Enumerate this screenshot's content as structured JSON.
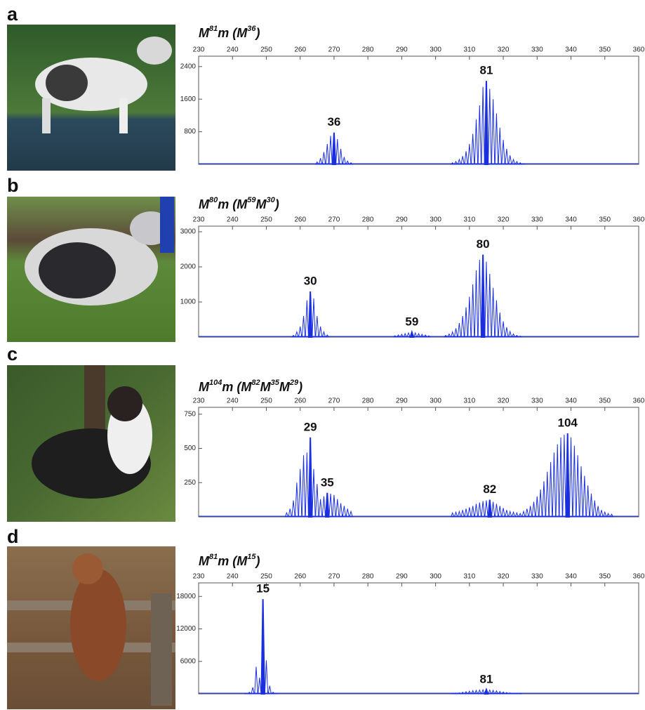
{
  "chart_data": [
    {
      "type": "spike",
      "panel_label": "a",
      "title": [
        {
          "text": "M"
        },
        {
          "text": "81",
          "sup": true
        },
        {
          "text": "m (M"
        },
        {
          "text": "36",
          "sup": true
        },
        {
          "text": ")"
        }
      ],
      "color": "#1a2fe0",
      "xlim": [
        230,
        360
      ],
      "xticks": [
        230,
        240,
        250,
        260,
        270,
        280,
        290,
        300,
        310,
        320,
        330,
        340,
        350,
        360
      ],
      "ylim": [
        0,
        2655
      ],
      "yticks": [
        800,
        1600,
        2400
      ],
      "x": [
        265,
        266,
        267,
        268,
        269,
        270,
        271,
        272,
        273,
        274,
        275,
        305,
        306,
        307,
        308,
        309,
        310,
        311,
        312,
        313,
        314,
        315,
        316,
        317,
        318,
        319,
        320,
        321,
        322,
        323,
        324,
        325,
        326
      ],
      "values": [
        60,
        150,
        300,
        500,
        700,
        780,
        620,
        380,
        180,
        80,
        40,
        40,
        70,
        120,
        200,
        320,
        500,
        750,
        1100,
        1450,
        1900,
        2050,
        1850,
        1600,
        1250,
        900,
        600,
        380,
        220,
        120,
        70,
        40,
        20
      ],
      "peak_names": [
        null,
        null,
        null,
        null,
        null,
        "36",
        null,
        null,
        null,
        null,
        null,
        null,
        null,
        null,
        null,
        null,
        null,
        null,
        null,
        null,
        null,
        "81",
        null,
        null,
        null,
        null,
        null,
        null,
        null,
        null,
        null,
        null,
        null
      ]
    },
    {
      "type": "spike",
      "panel_label": "b",
      "title": [
        {
          "text": "M"
        },
        {
          "text": "80",
          "sup": true
        },
        {
          "text": "m (M"
        },
        {
          "text": "59",
          "sup": true
        },
        {
          "text": "M"
        },
        {
          "text": "30",
          "sup": true
        },
        {
          "text": ")"
        }
      ],
      "color": "#1a2fe0",
      "xlim": [
        230,
        360
      ],
      "xticks": [
        230,
        240,
        250,
        260,
        270,
        280,
        290,
        300,
        310,
        320,
        330,
        340,
        350,
        360
      ],
      "ylim": [
        0,
        3160
      ],
      "yticks": [
        1000,
        2000,
        3000
      ],
      "x": [
        258,
        259,
        260,
        261,
        262,
        263,
        264,
        265,
        266,
        267,
        268,
        288,
        289,
        290,
        291,
        292,
        293,
        294,
        295,
        296,
        297,
        298,
        303,
        304,
        305,
        306,
        307,
        308,
        309,
        310,
        311,
        312,
        313,
        314,
        315,
        316,
        317,
        318,
        319,
        320,
        321,
        322,
        323,
        324,
        325
      ],
      "values": [
        50,
        150,
        300,
        600,
        1050,
        1300,
        1100,
        600,
        300,
        150,
        60,
        40,
        60,
        80,
        100,
        120,
        140,
        120,
        100,
        80,
        60,
        40,
        50,
        90,
        150,
        250,
        400,
        600,
        850,
        1150,
        1500,
        1900,
        2200,
        2350,
        2150,
        1800,
        1400,
        1050,
        700,
        450,
        280,
        160,
        90,
        50,
        30
      ],
      "peak_names": [
        null,
        null,
        null,
        null,
        null,
        "30",
        null,
        null,
        null,
        null,
        null,
        null,
        null,
        null,
        null,
        null,
        "59",
        null,
        null,
        null,
        null,
        null,
        null,
        null,
        null,
        null,
        null,
        null,
        null,
        null,
        null,
        null,
        null,
        "80",
        null,
        null,
        null,
        null,
        null,
        null,
        null,
        null,
        null,
        null,
        null
      ]
    },
    {
      "type": "spike",
      "panel_label": "c",
      "title": [
        {
          "text": "M"
        },
        {
          "text": "104",
          "sup": true
        },
        {
          "text": "m (M"
        },
        {
          "text": "82",
          "sup": true
        },
        {
          "text": "M"
        },
        {
          "text": "35",
          "sup": true
        },
        {
          "text": "M"
        },
        {
          "text": "29",
          "sup": true
        },
        {
          "text": ")"
        }
      ],
      "color": "#1a2fe0",
      "xlim": [
        230,
        360
      ],
      "xticks": [
        230,
        240,
        250,
        260,
        270,
        280,
        290,
        300,
        310,
        320,
        330,
        340,
        350,
        360
      ],
      "ylim": [
        0,
        800
      ],
      "yticks": [
        250,
        500,
        750
      ],
      "x": [
        256,
        257,
        258,
        259,
        260,
        261,
        262,
        263,
        264,
        265,
        266,
        267,
        268,
        269,
        270,
        271,
        272,
        273,
        274,
        275,
        305,
        306,
        307,
        308,
        309,
        310,
        311,
        312,
        313,
        314,
        315,
        316,
        317,
        318,
        319,
        320,
        321,
        322,
        323,
        324,
        325,
        326,
        327,
        328,
        329,
        330,
        331,
        332,
        333,
        334,
        335,
        336,
        337,
        338,
        339,
        340,
        341,
        342,
        343,
        344,
        345,
        346,
        347,
        348,
        349,
        350,
        351,
        352
      ],
      "values": [
        30,
        60,
        120,
        250,
        350,
        450,
        470,
        580,
        350,
        240,
        130,
        150,
        175,
        170,
        160,
        130,
        100,
        80,
        60,
        40,
        30,
        35,
        40,
        50,
        60,
        70,
        80,
        95,
        105,
        115,
        120,
        125,
        110,
        95,
        80,
        65,
        50,
        40,
        35,
        30,
        25,
        40,
        60,
        80,
        110,
        150,
        200,
        260,
        330,
        400,
        470,
        530,
        580,
        600,
        610,
        580,
        520,
        450,
        370,
        300,
        230,
        170,
        120,
        80,
        50,
        35,
        25,
        20
      ],
      "peak_names": [
        null,
        null,
        null,
        null,
        null,
        null,
        null,
        "29",
        null,
        null,
        null,
        null,
        "35",
        null,
        null,
        null,
        null,
        null,
        null,
        null,
        null,
        null,
        null,
        null,
        null,
        null,
        null,
        null,
        null,
        null,
        null,
        "82",
        null,
        null,
        null,
        null,
        null,
        null,
        null,
        null,
        null,
        null,
        null,
        null,
        null,
        null,
        null,
        null,
        null,
        null,
        null,
        null,
        null,
        null,
        "104",
        null,
        null,
        null,
        null,
        null,
        null,
        null,
        null,
        null,
        null,
        null,
        null,
        null
      ]
    },
    {
      "type": "spike",
      "panel_label": "d",
      "title": [
        {
          "text": "M"
        },
        {
          "text": "81",
          "sup": true
        },
        {
          "text": "m (M"
        },
        {
          "text": "15",
          "sup": true
        },
        {
          "text": ")"
        }
      ],
      "color": "#1a2fe0",
      "xlim": [
        230,
        360
      ],
      "xticks": [
        230,
        240,
        250,
        260,
        270,
        280,
        290,
        300,
        310,
        320,
        330,
        340,
        350,
        360
      ],
      "ylim": [
        0,
        20500
      ],
      "yticks": [
        6000,
        12000,
        18000
      ],
      "x": [
        244,
        245,
        246,
        247,
        248,
        249,
        250,
        251,
        252,
        253,
        305,
        306,
        307,
        308,
        309,
        310,
        311,
        312,
        313,
        314,
        315,
        316,
        317,
        318,
        319,
        320,
        321,
        322,
        323,
        324,
        325
      ],
      "values": [
        100,
        300,
        1200,
        5000,
        3000,
        17500,
        6200,
        1500,
        300,
        100,
        100,
        150,
        200,
        300,
        400,
        500,
        600,
        650,
        700,
        750,
        800,
        720,
        650,
        550,
        450,
        350,
        250,
        180,
        120,
        80,
        50
      ],
      "peak_names": [
        null,
        null,
        null,
        null,
        null,
        "15",
        null,
        null,
        null,
        null,
        null,
        null,
        null,
        null,
        null,
        null,
        null,
        null,
        null,
        null,
        "81",
        null,
        null,
        null,
        null,
        null,
        null,
        null,
        null,
        null,
        null
      ]
    }
  ]
}
